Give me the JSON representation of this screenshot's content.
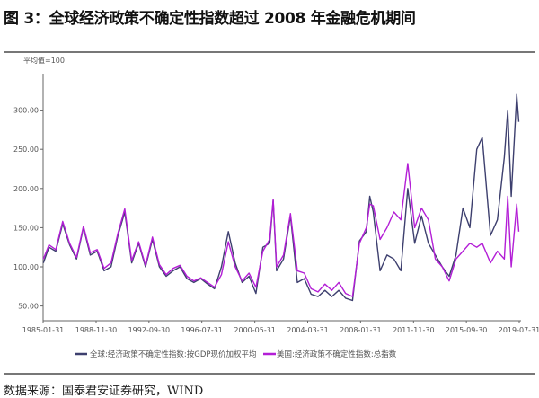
{
  "title": "图 3：全球经济政策不确定性指数超过 2008 年金融危机期间",
  "source": "数据来源：国泰君安证券研究，WIND",
  "chart_data": {
    "type": "line",
    "unit_label": "平均值=100",
    "ylim": [
      40,
      330
    ],
    "yticks": [
      50,
      100,
      150,
      200,
      250,
      300
    ],
    "ytick_labels": [
      "50.00",
      "100.00",
      "150.00",
      "200.00",
      "250.00",
      "300.00"
    ],
    "xlim": [
      1985.08,
      2019.58
    ],
    "xticks": [
      1985.08,
      1988.92,
      1992.75,
      1996.58,
      2000.42,
      2004.25,
      2008.08,
      2011.92,
      2015.75,
      2019.58
    ],
    "xtick_labels": [
      "1985-01-31",
      "1988-11-30",
      "1992-09-30",
      "1996-07-31",
      "2000-05-31",
      "2004-03-31",
      "2008-01-31",
      "2011-11-30",
      "2015-09-30",
      "2019-07-31"
    ],
    "legend_position": "bottom",
    "x": [
      1985.1,
      1985.5,
      1986.0,
      1986.5,
      1987.0,
      1987.5,
      1988.0,
      1988.5,
      1989.0,
      1989.5,
      1990.0,
      1990.5,
      1991.0,
      1991.5,
      1992.0,
      1992.5,
      1993.0,
      1993.5,
      1994.0,
      1994.5,
      1995.0,
      1995.5,
      1996.0,
      1996.5,
      1997.0,
      1997.5,
      1998.0,
      1998.5,
      1999.0,
      1999.5,
      2000.0,
      2000.5,
      2001.0,
      2001.5,
      2001.75,
      2002.0,
      2002.5,
      2003.0,
      2003.5,
      2004.0,
      2004.5,
      2005.0,
      2005.5,
      2006.0,
      2006.5,
      2007.0,
      2007.5,
      2008.0,
      2008.5,
      2008.75,
      2009.0,
      2009.5,
      2010.0,
      2010.5,
      2011.0,
      2011.5,
      2012.0,
      2012.5,
      2013.0,
      2013.5,
      2014.0,
      2014.5,
      2015.0,
      2015.5,
      2016.0,
      2016.5,
      2016.9,
      2017.5,
      2018.0,
      2018.5,
      2018.75,
      2019.0,
      2019.4,
      2019.55
    ],
    "series": [
      {
        "name": "全球:经济政策不确定性指数:按GDP现价加权平均",
        "color": "#3d3f6e",
        "values": [
          105,
          125,
          120,
          155,
          128,
          110,
          150,
          115,
          120,
          95,
          100,
          140,
          170,
          105,
          130,
          100,
          135,
          100,
          88,
          95,
          100,
          85,
          80,
          85,
          78,
          72,
          100,
          145,
          105,
          80,
          88,
          66,
          125,
          130,
          185,
          95,
          110,
          165,
          80,
          85,
          65,
          62,
          70,
          62,
          70,
          60,
          57,
          133,
          145,
          190,
          170,
          95,
          115,
          110,
          95,
          200,
          130,
          165,
          130,
          115,
          100,
          88,
          115,
          175,
          150,
          250,
          265,
          140,
          160,
          240,
          300,
          190,
          320,
          285
        ]
      },
      {
        "name": "美国:经济政策不确定性指数:总指数",
        "color": "#b31ed6",
        "values": [
          110,
          128,
          122,
          158,
          130,
          112,
          152,
          118,
          122,
          98,
          105,
          143,
          174,
          108,
          132,
          102,
          138,
          103,
          90,
          98,
          102,
          88,
          82,
          86,
          80,
          74,
          90,
          132,
          100,
          82,
          92,
          74,
          120,
          135,
          186,
          100,
          115,
          168,
          95,
          92,
          72,
          68,
          78,
          70,
          80,
          66,
          62,
          130,
          150,
          180,
          178,
          135,
          150,
          170,
          160,
          232,
          150,
          175,
          160,
          110,
          100,
          82,
          110,
          120,
          130,
          125,
          130,
          105,
          120,
          110,
          190,
          100,
          180,
          145
        ]
      }
    ]
  }
}
